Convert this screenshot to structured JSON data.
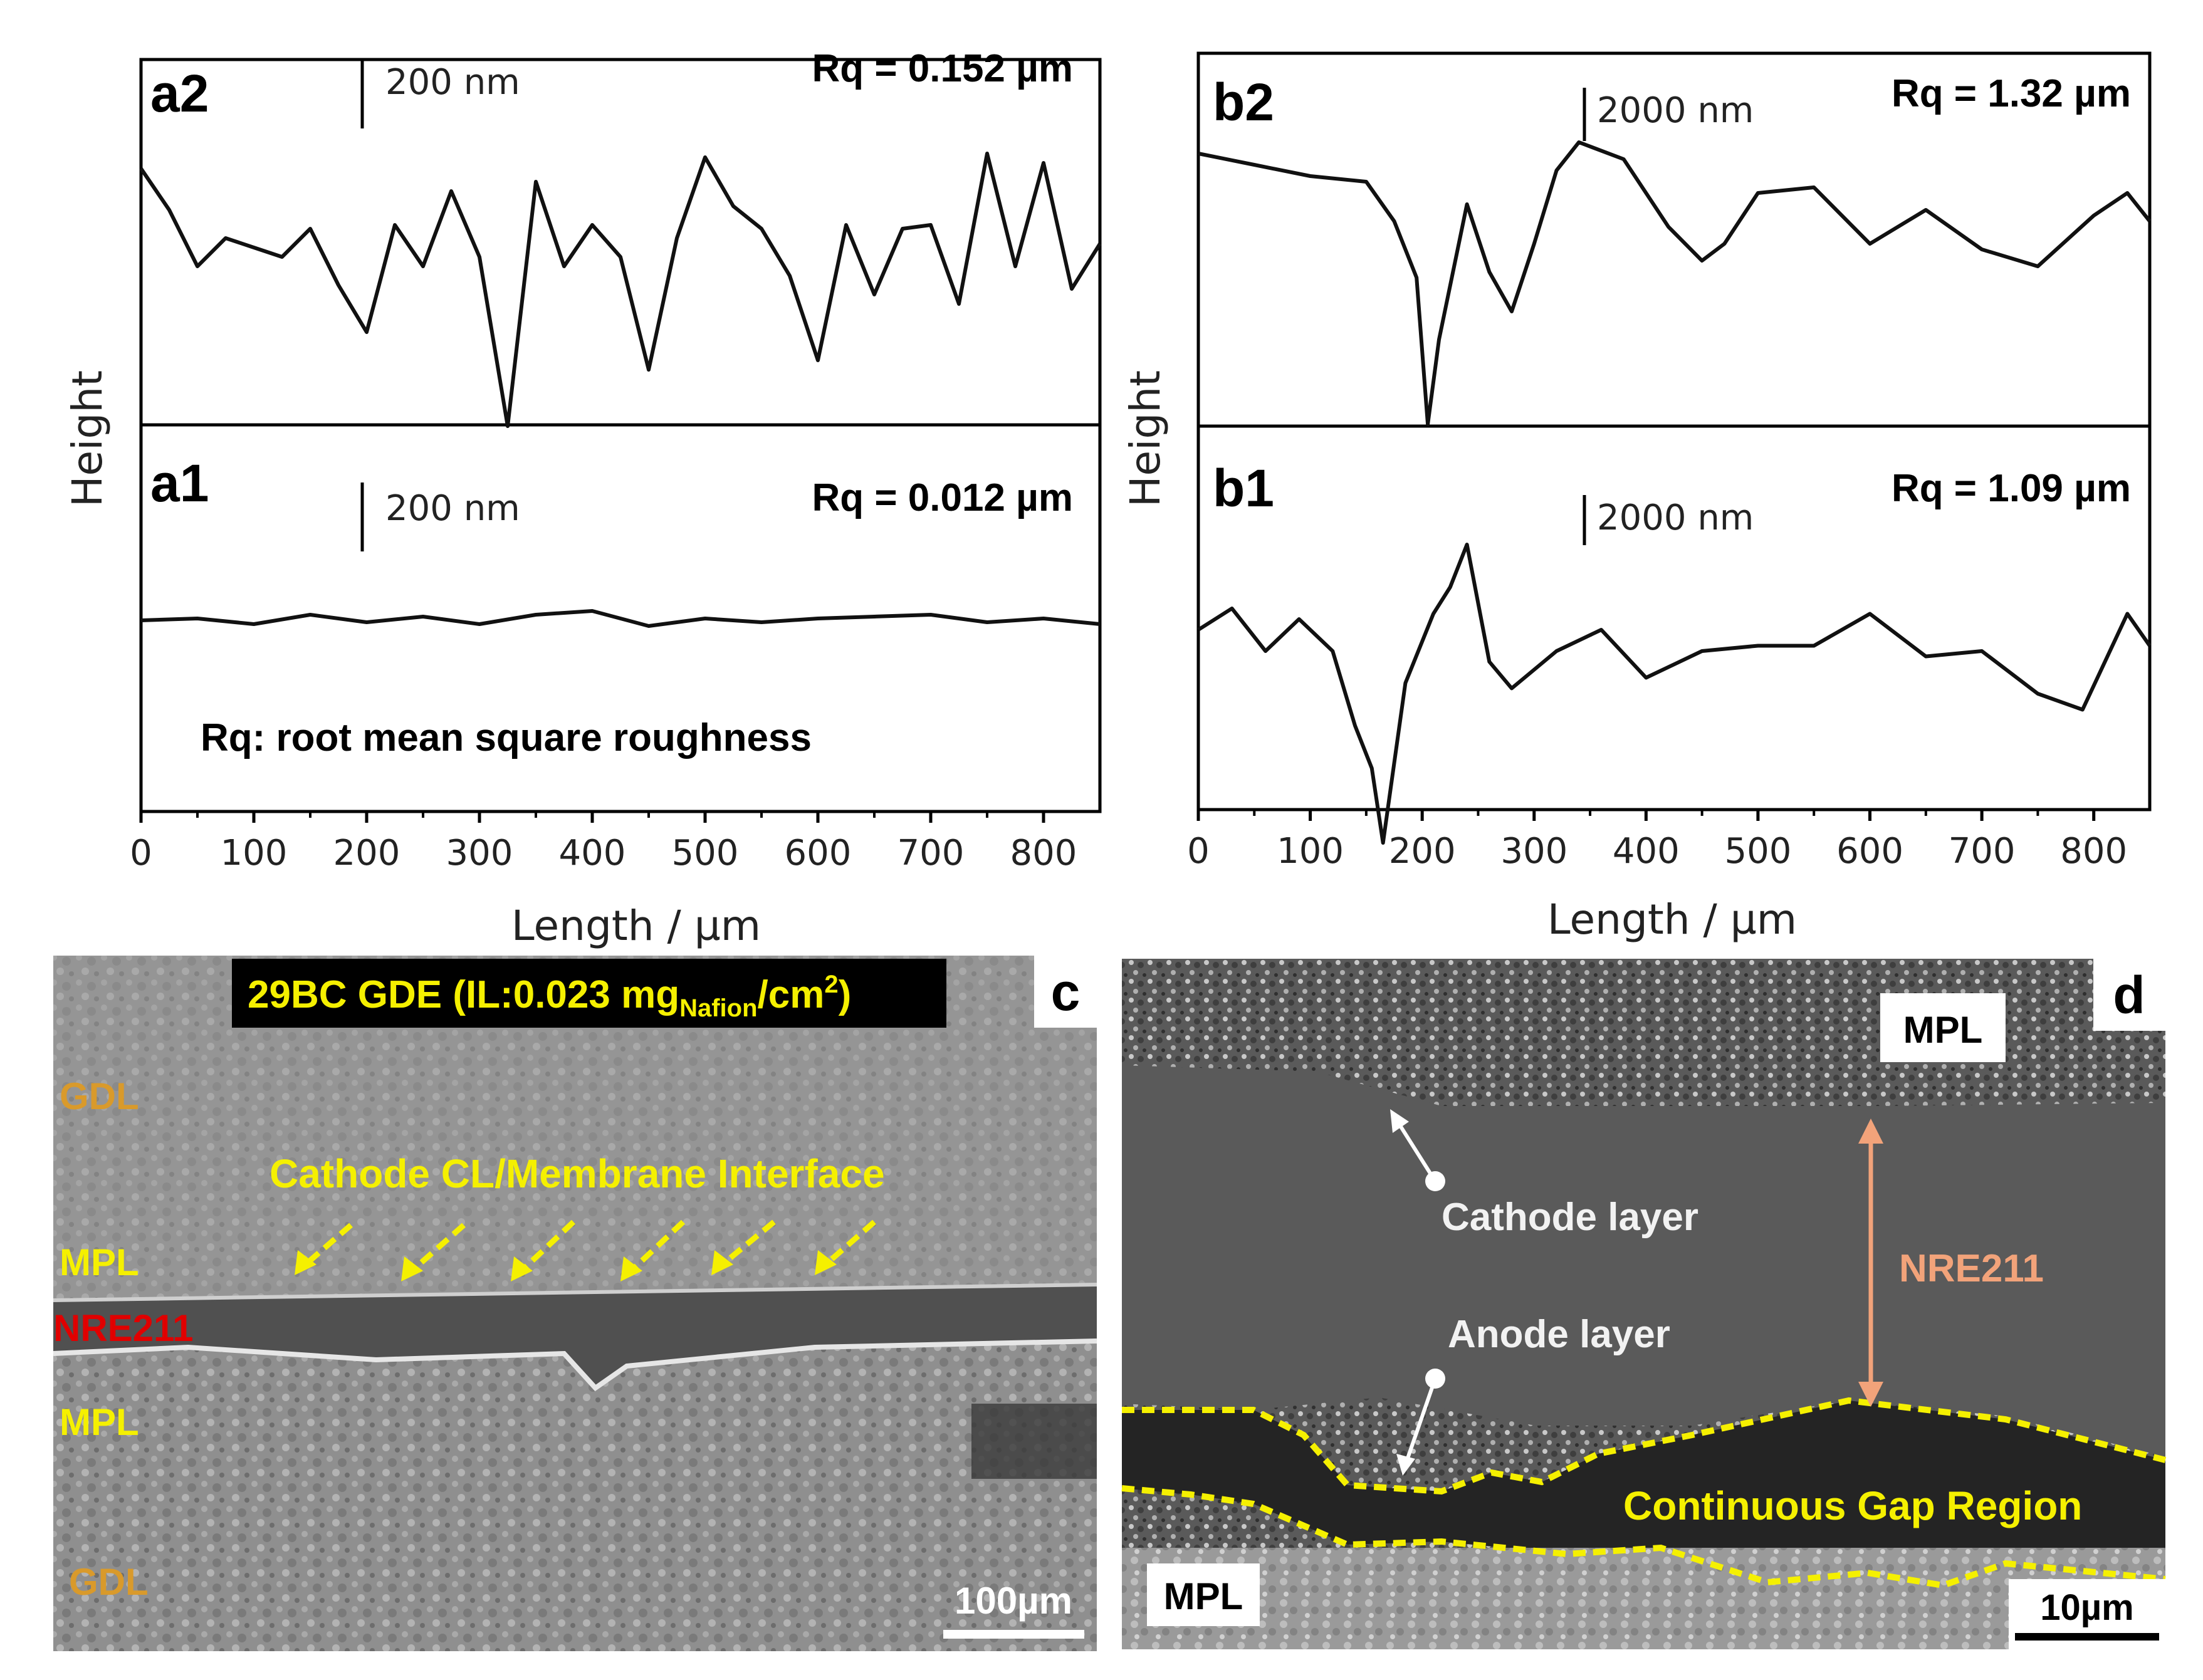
{
  "chart_data": [
    {
      "type": "line",
      "panel": "a2",
      "rq_label": "Rq = 0.152 µm",
      "scale_label": "200 nm",
      "xlim": [
        0,
        850
      ],
      "x": [
        0,
        25,
        50,
        75,
        100,
        125,
        150,
        175,
        200,
        225,
        250,
        275,
        300,
        325,
        350,
        375,
        400,
        425,
        450,
        475,
        500,
        525,
        550,
        575,
        600,
        625,
        650,
        675,
        700,
        725,
        750,
        775,
        800,
        825,
        850
      ],
      "values": [
        0.42,
        0.2,
        -0.1,
        0.05,
        0.0,
        -0.05,
        0.1,
        -0.2,
        -0.45,
        0.12,
        -0.1,
        0.3,
        -0.05,
        -0.95,
        0.35,
        -0.1,
        0.12,
        -0.05,
        -0.65,
        0.05,
        0.48,
        0.22,
        0.1,
        -0.15,
        -0.6,
        0.12,
        -0.25,
        0.1,
        0.12,
        -0.3,
        0.5,
        -0.1,
        0.45,
        -0.22,
        0.02
      ]
    },
    {
      "type": "line",
      "panel": "a1",
      "rq_label": "Rq = 0.012 µm",
      "scale_label": "200 nm",
      "note": "Rq: root mean square roughness",
      "xlim": [
        0,
        850
      ],
      "x": [
        0,
        50,
        100,
        150,
        200,
        250,
        300,
        350,
        400,
        450,
        500,
        550,
        600,
        650,
        700,
        750,
        800,
        850
      ],
      "values": [
        0.0,
        0.01,
        -0.02,
        0.03,
        -0.01,
        0.02,
        -0.02,
        0.03,
        0.05,
        -0.03,
        0.01,
        -0.01,
        0.01,
        0.02,
        0.03,
        -0.01,
        0.01,
        -0.02
      ]
    },
    {
      "type": "line",
      "panel": "b2",
      "rq_label": "Rq = 1.32 µm",
      "scale_label": "2000 nm",
      "xlim": [
        0,
        850
      ],
      "x": [
        0,
        50,
        100,
        150,
        175,
        195,
        205,
        215,
        240,
        260,
        280,
        300,
        320,
        340,
        380,
        420,
        450,
        470,
        500,
        550,
        600,
        650,
        700,
        750,
        800,
        830,
        850
      ],
      "values": [
        1.5,
        1.3,
        1.1,
        1.0,
        0.3,
        -0.7,
        -3.3,
        -1.8,
        0.6,
        -0.6,
        -1.3,
        -0.1,
        1.2,
        1.7,
        1.4,
        0.2,
        -0.4,
        -0.1,
        0.8,
        0.9,
        -0.1,
        0.5,
        -0.2,
        -0.5,
        0.4,
        0.8,
        0.3
      ]
    },
    {
      "type": "line",
      "panel": "b1",
      "rq_label": "Rq = 1.09 µm",
      "scale_label": "2000 nm",
      "xlim": [
        0,
        850
      ],
      "x": [
        0,
        30,
        60,
        90,
        120,
        140,
        155,
        165,
        185,
        210,
        225,
        240,
        260,
        280,
        320,
        360,
        400,
        450,
        500,
        550,
        600,
        650,
        700,
        750,
        790,
        830,
        850
      ],
      "values": [
        0.0,
        0.4,
        -0.4,
        0.2,
        -0.4,
        -1.8,
        -2.6,
        -4.0,
        -1.0,
        0.3,
        0.8,
        1.6,
        -0.6,
        -1.1,
        -0.4,
        0.0,
        -0.9,
        -0.4,
        -0.3,
        -0.3,
        0.3,
        -0.5,
        -0.4,
        -1.2,
        -1.5,
        0.3,
        -0.3
      ]
    }
  ],
  "axes": {
    "xlabel": "Length / µm",
    "ylabel": "Height",
    "xticks": [
      "0",
      "100",
      "200",
      "300",
      "400",
      "500",
      "600",
      "700",
      "800"
    ]
  },
  "panels": {
    "a2": "a2",
    "a1": "a1",
    "b2": "b2",
    "b1": "b1",
    "c": "c",
    "d": "d"
  },
  "sem_c": {
    "title_main": "29BC GDE (IL:0.023 mg",
    "title_sub": "Nafion",
    "title_tail": "/cm",
    "title_sup": "2",
    "title_close": ")",
    "gdl_top": "GDL",
    "mpl_top": "MPL",
    "membrane": "NRE211",
    "mpl_bottom": "MPL",
    "gdl_bottom": "GDL",
    "interface": "Cathode CL/Membrane Interface",
    "scale": "100µm"
  },
  "sem_d": {
    "mpl_top": "MPL",
    "cathode": "Cathode layer",
    "anode": "Anode layer",
    "membrane": "NRE211",
    "gap": "Continuous Gap Region",
    "mpl_bottom": "MPL",
    "scale": "10µm"
  },
  "colors": {
    "yellow_label": "#f5f000",
    "orange_label": "#d99a2b",
    "red_label": "#e00000",
    "salmon": "#f2a37a"
  }
}
